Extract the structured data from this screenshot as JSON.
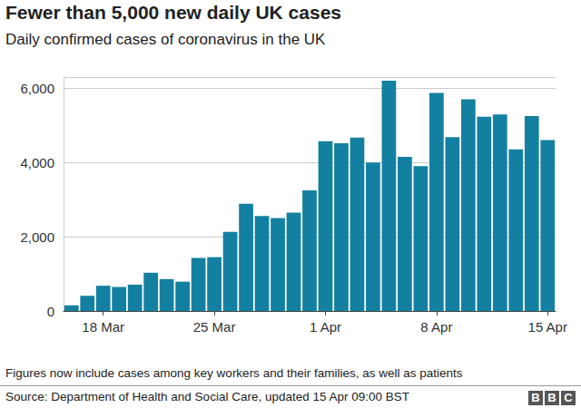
{
  "chart_data": {
    "type": "bar",
    "title": "Fewer than 5,000 new daily UK cases",
    "subtitle": "Daily confirmed cases of coronavirus in the UK",
    "categories": [
      null,
      null,
      "18 Mar",
      null,
      null,
      null,
      null,
      null,
      null,
      "25 Mar",
      null,
      null,
      null,
      null,
      null,
      null,
      "1 Apr",
      null,
      null,
      null,
      null,
      null,
      null,
      "8 Apr",
      null,
      null,
      null,
      null,
      null,
      null,
      "15 Apr"
    ],
    "values": [
      150,
      410,
      680,
      650,
      710,
      1030,
      860,
      790,
      1430,
      1450,
      2130,
      2890,
      2560,
      2500,
      2650,
      3250,
      4570,
      4520,
      4670,
      4000,
      6200,
      4150,
      3900,
      5870,
      4680,
      5700,
      5230,
      5290,
      4350,
      5250,
      4600
    ],
    "color": "#1380a1",
    "ylim": [
      0,
      6300
    ],
    "yticks": [
      0,
      {
        "value": 2000,
        "label": "2,000"
      },
      {
        "value": 4000,
        "label": "4,000"
      },
      {
        "value": 6000,
        "label": "6,000"
      }
    ],
    "grid": true,
    "annotations": [
      "Figures now include cases among key workers and their families, as well as patients",
      "Source: Department of Health and Social Care, updated 15 Apr 09:00 BST"
    ],
    "logo": "BBC"
  }
}
